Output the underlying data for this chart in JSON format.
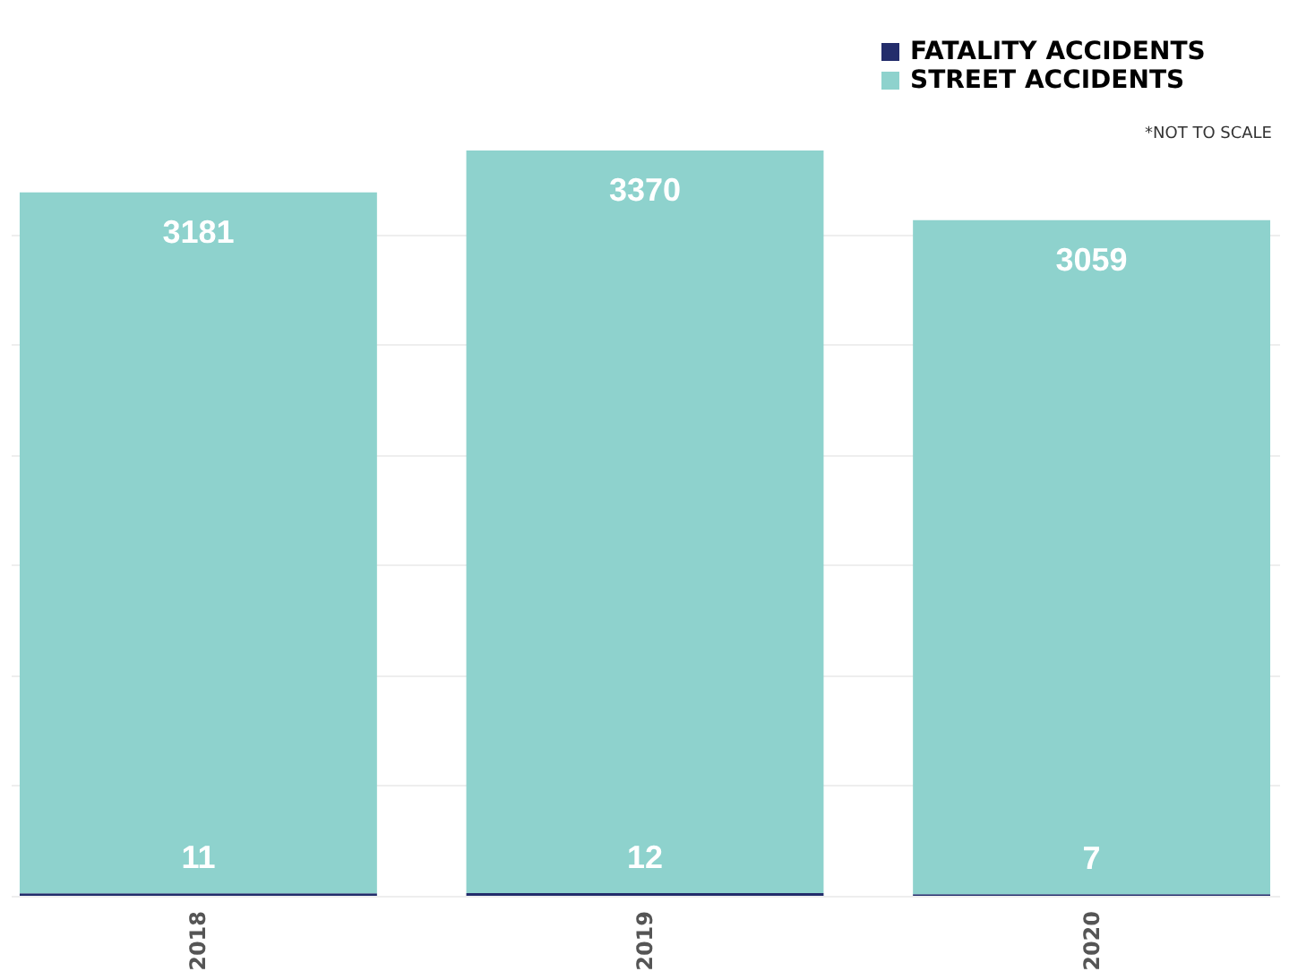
{
  "chart_data": {
    "type": "bar",
    "stacked": true,
    "data_labels": true,
    "categories": [
      "2018",
      "2019",
      "2020"
    ],
    "series": [
      {
        "name": "FATALITY ACCIDENTS",
        "color": "#232d6b",
        "values": [
          11,
          12,
          7
        ]
      },
      {
        "name": "STREET ACCIDENTS",
        "color": "#8ed2cd",
        "values": [
          3181,
          3370,
          3059
        ]
      }
    ],
    "annotations": [
      "*NOT TO SCALE"
    ],
    "legend": "top right",
    "grid": "y",
    "tick_labels": "x"
  }
}
